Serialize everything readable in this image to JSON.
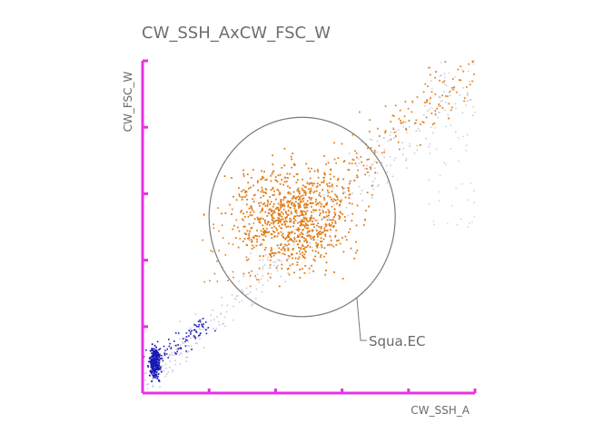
{
  "chart_data": {
    "type": "scatter",
    "title": "CW_SSH_AxCW_FSC_W",
    "xlabel": "CW_SSH_A",
    "ylabel": "CW_FSC_W",
    "xlim": [
      0,
      5
    ],
    "ylim": [
      0,
      5
    ],
    "grid": false,
    "axis_color": "#e632e6",
    "gate": {
      "label": "Squa.EC",
      "shape": "ellipse",
      "center": [
        2.4,
        2.65
      ],
      "radii": [
        1.4,
        1.5
      ],
      "color": "#7a7a7a"
    },
    "series": [
      {
        "name": "",
        "color": "#c8cbe2",
        "description_points": 340,
        "cluster": {
          "trend_from": [
            0.05,
            0.1
          ],
          "trend_to": [
            4.8,
            4.7
          ],
          "spread": 0.35
        }
      },
      {
        "name": "",
        "color": "#e07b14",
        "cluster": {
          "center": [
            2.3,
            2.65
          ],
          "spread": [
            0.7,
            0.65
          ]
        }
      },
      {
        "name": "",
        "color": "#1a1ab4",
        "cluster": {
          "center": [
            0.15,
            0.45
          ],
          "spread": [
            0.12,
            0.18
          ]
        }
      }
    ]
  }
}
